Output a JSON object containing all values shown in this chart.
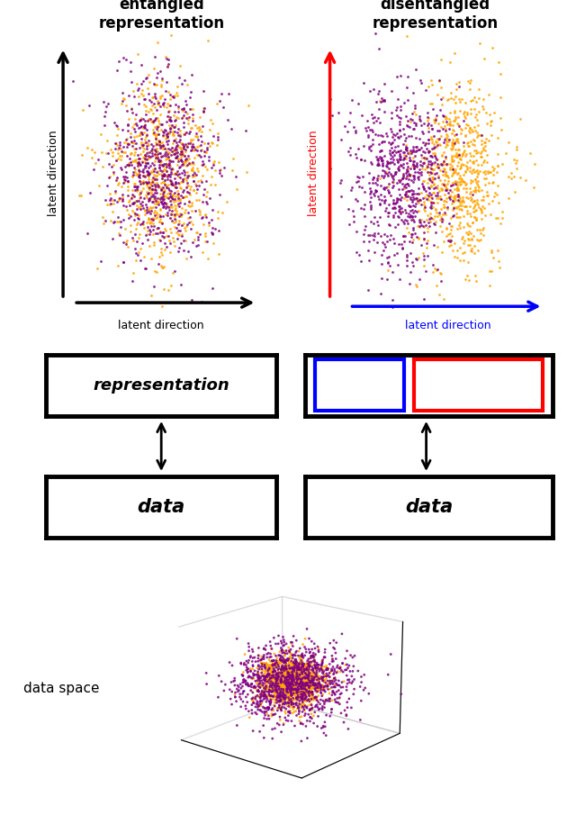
{
  "purple_color": "#800080",
  "orange_color": "#FFA500",
  "title_left": "entangled\nrepresentation",
  "title_right": "disentangled\nrepresentation",
  "label_latent_black": "latent direction",
  "label_latent_red": "latent direction",
  "label_latent_blue": "latent direction",
  "label_data_space": "data space",
  "n_points": 1500,
  "seed": 42,
  "bg_color": "#ffffff",
  "fig_width": 6.4,
  "fig_height": 9.05,
  "dpi": 100
}
